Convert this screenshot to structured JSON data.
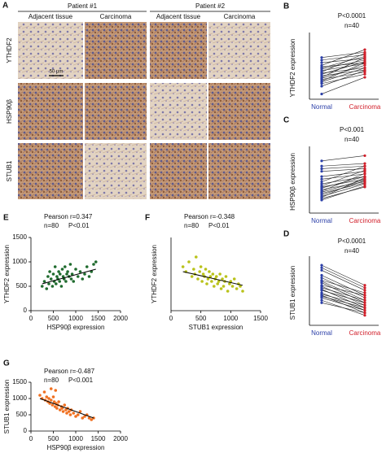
{
  "panel_a": {
    "panel": "A",
    "patients": [
      "Patient #1",
      "Patient #2"
    ],
    "columns": [
      "Adjacent tissue",
      "Carcinoma",
      "Adjacent tissue",
      "Carcinoma"
    ],
    "rows": [
      "YTHDF2",
      "HSP90β",
      "STUB1"
    ],
    "scale_bar": "50 μm"
  },
  "chart_data": [
    {
      "type": "paired",
      "panel": "B",
      "y_label": "YTHDF2 expression",
      "annotations": [
        "P<0.0001",
        "n=40"
      ],
      "ylim": [
        0,
        1200
      ],
      "series": [
        {
          "name": "Normal",
          "color": "#2b3fa8",
          "values": [
            800,
            750,
            700,
            650,
            620,
            600,
            580,
            550,
            520,
            500,
            480,
            450,
            420,
            400,
            380,
            350,
            330,
            300,
            250,
            100
          ]
        },
        {
          "name": "Carcinoma",
          "color": "#d11f2a",
          "values": [
            900,
            850,
            780,
            950,
            700,
            820,
            750,
            680,
            880,
            600,
            720,
            560,
            800,
            650,
            520,
            700,
            600,
            480,
            550,
            420
          ]
        }
      ]
    },
    {
      "type": "paired",
      "panel": "C",
      "y_label": "HSP90β expression",
      "annotations": [
        "P<0.001",
        "n=40"
      ],
      "ylim": [
        0,
        1200
      ],
      "series": [
        {
          "name": "Normal",
          "color": "#2b3fa8",
          "values": [
            1000,
            900,
            850,
            800,
            700,
            650,
            600,
            560,
            520,
            500,
            480,
            450,
            420,
            400,
            380,
            350,
            320,
            300,
            280,
            250
          ]
        },
        {
          "name": "Carcinoma",
          "color": "#d11f2a",
          "values": [
            1100,
            950,
            900,
            850,
            800,
            750,
            900,
            700,
            820,
            650,
            700,
            600,
            760,
            640,
            580,
            620,
            560,
            680,
            500,
            520
          ]
        }
      ]
    },
    {
      "type": "paired",
      "panel": "D",
      "y_label": "STUB1 expression",
      "annotations": [
        "P<0.0001",
        "n=40"
      ],
      "ylim": [
        0,
        1300
      ],
      "series": [
        {
          "name": "Normal",
          "color": "#2b3fa8",
          "values": [
            1200,
            1150,
            1100,
            1000,
            950,
            900,
            880,
            850,
            800,
            780,
            750,
            720,
            700,
            650,
            620,
            600,
            580,
            550,
            500,
            450
          ]
        },
        {
          "name": "Carcinoma",
          "color": "#d11f2a",
          "values": [
            800,
            750,
            700,
            600,
            550,
            650,
            500,
            450,
            600,
            400,
            500,
            350,
            450,
            300,
            400,
            250,
            350,
            300,
            200,
            250
          ]
        }
      ]
    },
    {
      "type": "scatter",
      "panel": "E",
      "x_label": "HSP90β expression",
      "y_label": "YTHDF2 expression",
      "annotations": [
        "Pearson r=0.347",
        "n=80",
        "P<0.01"
      ],
      "color": "#1f6b2e",
      "xlim": [
        0,
        2000
      ],
      "ylim": [
        0,
        1500
      ],
      "xticks": [
        0,
        500,
        1000,
        1500,
        2000
      ],
      "yticks": [
        0,
        500,
        1000,
        1500
      ],
      "x": [
        250,
        300,
        350,
        380,
        400,
        420,
        450,
        480,
        500,
        520,
        540,
        560,
        580,
        600,
        620,
        640,
        650,
        680,
        700,
        720,
        740,
        760,
        780,
        800,
        820,
        850,
        880,
        900,
        920,
        950,
        1000,
        1050,
        1100,
        1150,
        1200,
        1250,
        1300,
        1350,
        1400,
        1450
      ],
      "y": [
        500,
        600,
        450,
        700,
        550,
        800,
        650,
        500,
        750,
        600,
        900,
        550,
        700,
        650,
        800,
        600,
        750,
        500,
        850,
        700,
        650,
        900,
        600,
        750,
        800,
        700,
        950,
        650,
        750,
        600,
        850,
        700,
        800,
        650,
        750,
        900,
        700,
        800,
        950,
        1000
      ],
      "fit_line": {
        "x": [
          250,
          1450
        ],
        "y": [
          550,
          850
        ]
      }
    },
    {
      "type": "scatter",
      "panel": "F",
      "x_label": "STUB1 expression",
      "y_label": "YTHDF2 expression",
      "annotations": [
        "Pearson r=-0.348",
        "n=80",
        "P<0.01"
      ],
      "color": "#b9c21a",
      "xlim": [
        0,
        1500
      ],
      "ylim": [
        0,
        1500
      ],
      "xticks": [
        0,
        500,
        1000,
        1500
      ],
      "yticks": [],
      "x": [
        200,
        250,
        300,
        350,
        380,
        400,
        420,
        450,
        480,
        500,
        520,
        540,
        560,
        580,
        600,
        620,
        640,
        660,
        680,
        700,
        720,
        740,
        760,
        780,
        800,
        820,
        840,
        860,
        880,
        900,
        920,
        950,
        980,
        1000,
        1030,
        1060,
        1100,
        1130,
        1160,
        1200
      ],
      "y": [
        900,
        800,
        1000,
        700,
        850,
        750,
        1100,
        650,
        800,
        900,
        600,
        750,
        700,
        850,
        550,
        650,
        800,
        700,
        600,
        750,
        500,
        650,
        700,
        550,
        600,
        750,
        450,
        650,
        500,
        600,
        700,
        400,
        550,
        600,
        500,
        650,
        450,
        550,
        500,
        400
      ],
      "fit_line": {
        "x": [
          200,
          1200
        ],
        "y": [
          800,
          520
        ]
      }
    },
    {
      "type": "scatter",
      "panel": "G",
      "x_label": "HSP90β expression",
      "y_label": "STUB1 expression",
      "annotations": [
        "Pearson r=-0.487",
        "n=80",
        "P<0.001"
      ],
      "color": "#f07020",
      "xlim": [
        0,
        2000
      ],
      "ylim": [
        0,
        1500
      ],
      "xticks": [
        0,
        500,
        1000,
        1500,
        2000
      ],
      "yticks": [
        0,
        500,
        1000,
        1500
      ],
      "x": [
        200,
        250,
        300,
        320,
        350,
        380,
        400,
        420,
        450,
        480,
        500,
        520,
        540,
        560,
        580,
        600,
        620,
        650,
        680,
        700,
        720,
        750,
        780,
        800,
        820,
        850,
        880,
        900,
        950,
        1000,
        1050,
        1100,
        1150,
        1200,
        1250,
        1300,
        1350,
        1400,
        450,
        550
      ],
      "y": [
        1100,
        1000,
        1200,
        950,
        1050,
        900,
        1000,
        850,
        950,
        800,
        1050,
        900,
        750,
        850,
        700,
        800,
        900,
        650,
        750,
        700,
        600,
        800,
        650,
        550,
        700,
        600,
        500,
        650,
        550,
        450,
        500,
        600,
        400,
        450,
        500,
        400,
        350,
        400,
        1300,
        1250
      ],
      "fit_line": {
        "x": [
          200,
          1400
        ],
        "y": [
          1000,
          400
        ]
      }
    }
  ]
}
